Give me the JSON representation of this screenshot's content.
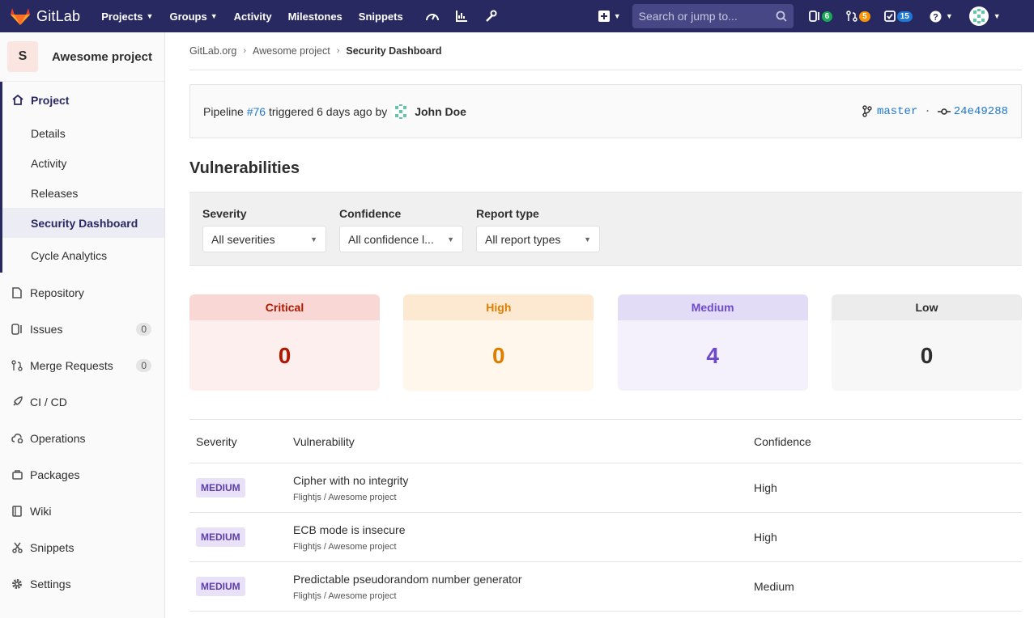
{
  "nav": {
    "brand": "GitLab",
    "links": [
      "Projects",
      "Groups",
      "Activity",
      "Milestones",
      "Snippets"
    ],
    "search_placeholder": "Search or jump to...",
    "issues_count": "6",
    "mr_count": "5",
    "todos_count": "15"
  },
  "sidebar": {
    "project_letter": "S",
    "project_name": "Awesome project",
    "project_label": "Project",
    "project_sub": [
      "Details",
      "Activity",
      "Releases",
      "Security Dashboard",
      "Cycle Analytics"
    ],
    "items": [
      {
        "label": "Repository"
      },
      {
        "label": "Issues",
        "count": "0"
      },
      {
        "label": "Merge Requests",
        "count": "0"
      },
      {
        "label": "CI / CD"
      },
      {
        "label": "Operations"
      },
      {
        "label": "Packages"
      },
      {
        "label": "Wiki"
      },
      {
        "label": "Snippets"
      },
      {
        "label": "Settings"
      }
    ]
  },
  "breadcrumb": [
    "GitLab.org",
    "Awesome project",
    "Security Dashboard"
  ],
  "pipeline": {
    "prefix": "Pipeline",
    "id": "#76",
    "middle": "triggered 6 days ago by",
    "author": "John Doe",
    "branch": "master",
    "separator": "·",
    "commit": "24e49288"
  },
  "vulnerabilities": {
    "title": "Vulnerabilities",
    "filters": [
      {
        "label": "Severity",
        "value": "All severities"
      },
      {
        "label": "Confidence",
        "value": "All confidence l..."
      },
      {
        "label": "Report type",
        "value": "All report types"
      }
    ],
    "counts": [
      {
        "label": "Critical",
        "value": "0",
        "head_bg": "#f8d7d4",
        "body_bg": "#fdefed",
        "color": "#ae1800"
      },
      {
        "label": "High",
        "value": "0",
        "head_bg": "#fde9d2",
        "body_bg": "#fff6ec",
        "color": "#de7e00"
      },
      {
        "label": "Medium",
        "value": "4",
        "head_bg": "#e3dcf7",
        "body_bg": "#f4f1fc",
        "color": "#6e49cb"
      },
      {
        "label": "Low",
        "value": "0",
        "head_bg": "#ececec",
        "body_bg": "#f7f7f7",
        "color": "#2e2e2e"
      }
    ],
    "columns": [
      "Severity",
      "Vulnerability",
      "Confidence"
    ],
    "rows": [
      {
        "severity": "MEDIUM",
        "title": "Cipher with no integrity",
        "project": "Flightjs / Awesome project",
        "confidence": "High"
      },
      {
        "severity": "MEDIUM",
        "title": "ECB mode is insecure",
        "project": "Flightjs / Awesome project",
        "confidence": "High"
      },
      {
        "severity": "MEDIUM",
        "title": "Predictable pseudorandom number generator",
        "project": "Flightjs / Awesome project",
        "confidence": "Medium"
      }
    ]
  }
}
